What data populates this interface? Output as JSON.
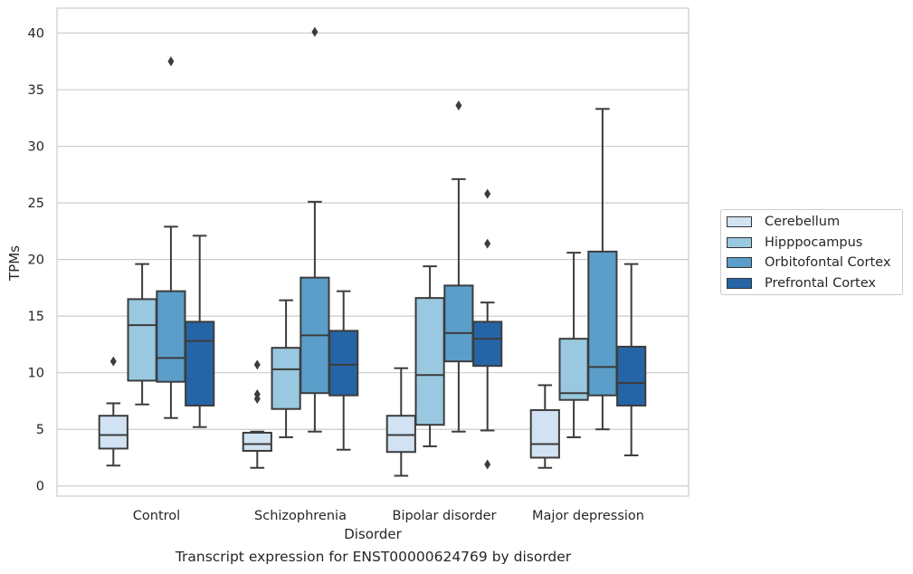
{
  "chart_data": {
    "type": "box",
    "xlabel": "Disorder",
    "ylabel": "TPMs",
    "caption": "Transcript expression for ENST00000624769 by disorder",
    "ylim": [
      -0.9,
      42.2
    ],
    "yticks": [
      0,
      5,
      10,
      15,
      20,
      25,
      30,
      35,
      40
    ],
    "grid": "horizontal",
    "legend_position": "right",
    "categories": [
      "Control",
      "Schizophrenia",
      "Bipolar disorder",
      "Major depression"
    ],
    "series": [
      {
        "name": "Cerebellum",
        "color": "#d1e2f2",
        "boxes": [
          {
            "whislo": 1.8,
            "q1": 3.3,
            "med": 4.5,
            "q3": 6.2,
            "whishi": 7.3,
            "fliers": [
              11.0
            ]
          },
          {
            "whislo": 1.6,
            "q1": 3.1,
            "med": 3.7,
            "q3": 4.7,
            "whishi": 4.8,
            "fliers": [
              7.7,
              8.1,
              10.7
            ]
          },
          {
            "whislo": 0.9,
            "q1": 3.0,
            "med": 4.5,
            "q3": 6.2,
            "whishi": 10.4,
            "fliers": []
          },
          {
            "whislo": 1.6,
            "q1": 2.5,
            "med": 3.7,
            "q3": 6.7,
            "whishi": 8.9,
            "fliers": []
          }
        ]
      },
      {
        "name": "Hipppocampus",
        "color": "#9ac8e0",
        "boxes": [
          {
            "whislo": 7.2,
            "q1": 9.3,
            "med": 14.2,
            "q3": 16.5,
            "whishi": 19.6,
            "fliers": []
          },
          {
            "whislo": 4.3,
            "q1": 6.8,
            "med": 10.3,
            "q3": 12.2,
            "whishi": 16.4,
            "fliers": []
          },
          {
            "whislo": 3.5,
            "q1": 5.4,
            "med": 9.8,
            "q3": 16.6,
            "whishi": 19.4,
            "fliers": []
          },
          {
            "whislo": 4.3,
            "q1": 7.6,
            "med": 8.2,
            "q3": 13.0,
            "whishi": 20.6,
            "fliers": []
          }
        ]
      },
      {
        "name": "Orbitofontal Cortex",
        "color": "#5a9ec9",
        "boxes": [
          {
            "whislo": 6.0,
            "q1": 9.2,
            "med": 11.3,
            "q3": 17.2,
            "whishi": 22.9,
            "fliers": [
              37.5
            ]
          },
          {
            "whislo": 4.8,
            "q1": 8.2,
            "med": 13.3,
            "q3": 18.4,
            "whishi": 25.1,
            "fliers": [
              40.1
            ]
          },
          {
            "whislo": 4.8,
            "q1": 11.0,
            "med": 13.5,
            "q3": 17.7,
            "whishi": 27.1,
            "fliers": [
              33.6
            ]
          },
          {
            "whislo": 5.0,
            "q1": 8.0,
            "med": 10.5,
            "q3": 20.7,
            "whishi": 33.3,
            "fliers": []
          }
        ]
      },
      {
        "name": "Prefrontal Cortex",
        "color": "#2565a6",
        "boxes": [
          {
            "whislo": 5.2,
            "q1": 7.1,
            "med": 12.8,
            "q3": 14.5,
            "whishi": 22.1,
            "fliers": []
          },
          {
            "whislo": 3.2,
            "q1": 8.0,
            "med": 10.7,
            "q3": 13.7,
            "whishi": 17.2,
            "fliers": []
          },
          {
            "whislo": 4.9,
            "q1": 10.6,
            "med": 13.0,
            "q3": 14.5,
            "whishi": 16.2,
            "fliers": [
              1.9,
              21.4,
              25.8
            ]
          },
          {
            "whislo": 2.7,
            "q1": 7.1,
            "med": 9.1,
            "q3": 12.3,
            "whishi": 19.6,
            "fliers": []
          }
        ]
      }
    ]
  }
}
